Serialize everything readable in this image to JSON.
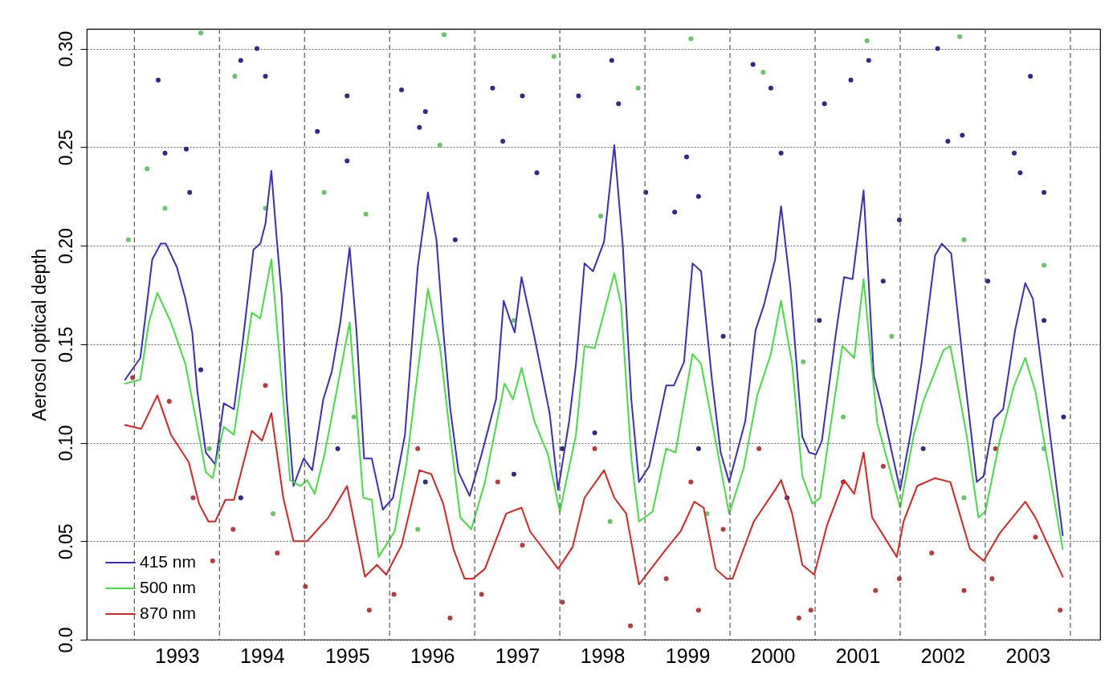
{
  "chart_data": {
    "type": "line",
    "ylabel": "Aerosol optical depth",
    "xlim": [
      1992.44,
      2004.35
    ],
    "ylim": [
      0,
      0.31
    ],
    "xticks": [
      {
        "value": 1993.5,
        "label": "1993"
      },
      {
        "value": 1994.5,
        "label": "1994"
      },
      {
        "value": 1995.5,
        "label": "1995"
      },
      {
        "value": 1996.5,
        "label": "1996"
      },
      {
        "value": 1997.5,
        "label": "1997"
      },
      {
        "value": 1998.5,
        "label": "1998"
      },
      {
        "value": 1999.5,
        "label": "1999"
      },
      {
        "value": 2000.5,
        "label": "2000"
      },
      {
        "value": 2001.5,
        "label": "2001"
      },
      {
        "value": 2002.5,
        "label": "2002"
      },
      {
        "value": 2003.5,
        "label": "2003"
      }
    ],
    "yticks": [
      {
        "value": 0,
        "label": "0.0"
      },
      0.05,
      {
        "value": 0.1,
        "label": "0.10"
      },
      0.15,
      {
        "value": 0.2,
        "label": "0.20"
      },
      0.25,
      {
        "value": 0.3,
        "label": "0.30"
      }
    ],
    "grid": "y",
    "legend": "bottom left",
    "line_style": "solid",
    "ref_lines": [
      {
        "axis": "x",
        "value": 1993,
        "line_style": "dashed",
        "color": "#555555"
      },
      {
        "axis": "x",
        "value": 1994,
        "line_style": "dashed",
        "color": "#555555"
      },
      {
        "axis": "x",
        "value": 1995,
        "line_style": "dashed",
        "color": "#555555"
      },
      {
        "axis": "x",
        "value": 1996,
        "line_style": "dashed",
        "color": "#555555"
      },
      {
        "axis": "x",
        "value": 1997,
        "line_style": "dashed",
        "color": "#555555"
      },
      {
        "axis": "x",
        "value": 1998,
        "line_style": "dashed",
        "color": "#555555"
      },
      {
        "axis": "x",
        "value": 1999,
        "line_style": "dashed",
        "color": "#555555"
      },
      {
        "axis": "x",
        "value": 2000,
        "line_style": "dashed",
        "color": "#555555"
      },
      {
        "axis": "x",
        "value": 2001,
        "line_style": "dashed",
        "color": "#555555"
      },
      {
        "axis": "x",
        "value": 2002,
        "line_style": "dashed",
        "color": "#555555"
      },
      {
        "axis": "x",
        "value": 2003,
        "line_style": "dashed",
        "color": "#555555"
      },
      {
        "axis": "x",
        "value": 2004,
        "line_style": "dashed",
        "color": "#555555"
      }
    ],
    "series": [
      {
        "type": "scatter",
        "marker": "circle",
        "color": "#2c2a8c",
        "x": [
          1993.28,
          1993.36,
          1993.61,
          1993.65,
          1994.25,
          1994.44,
          1994.54,
          1995.15,
          1995.5,
          1995.5,
          1996.14,
          1996.42,
          1996.35,
          1996.77,
          1997.21,
          1997.33,
          1997.73,
          1997.56,
          1998.22,
          1998.61,
          1998.69,
          1999.01,
          1999.35,
          1999.49,
          1999.63,
          2000.27,
          2000.48,
          2000.6,
          2001.11,
          2001.42,
          2001.63,
          2001.99,
          2002.44,
          2002.56,
          2002.73,
          2003.34,
          2003.41,
          2003.53,
          2003.69,
          2003.92,
          2003.69,
          2003.03,
          2001.8,
          2000.67,
          1998.41,
          1996.42,
          1995.39,
          1993.78,
          2001.05,
          1999.63,
          1997.46,
          1999.92,
          2002.27,
          1994.25,
          1998.03
        ],
        "values": [
          0.284,
          0.247,
          0.249,
          0.227,
          0.294,
          0.3,
          0.286,
          0.258,
          0.276,
          0.243,
          0.279,
          0.268,
          0.26,
          0.203,
          0.28,
          0.253,
          0.237,
          0.276,
          0.276,
          0.294,
          0.272,
          0.227,
          0.217,
          0.245,
          0.225,
          0.292,
          0.28,
          0.247,
          0.272,
          0.284,
          0.294,
          0.213,
          0.3,
          0.253,
          0.256,
          0.247,
          0.237,
          0.286,
          0.227,
          0.113,
          0.162,
          0.182,
          0.182,
          0.072,
          0.105,
          0.08,
          0.097,
          0.137,
          0.162,
          0.097,
          0.084,
          0.154,
          0.097,
          0.072,
          0.097
        ]
      },
      {
        "type": "scatter",
        "marker": "circle",
        "color": "#66c666",
        "x": [
          1993.15,
          1993.36,
          1993.78,
          1994.18,
          1994.54,
          1995.23,
          1995.72,
          1996.59,
          1996.64,
          1997.93,
          1998.48,
          1998.92,
          1999.54,
          2000.39,
          2001.61,
          2002.7,
          2002.75,
          2003.69,
          2000.86,
          2001.9,
          1997.46,
          1995.58,
          1993.88,
          1996.33,
          1998.59,
          1999.73,
          2001.33,
          2002.75,
          2003.69,
          1994.63,
          1992.93
        ],
        "values": [
          0.239,
          0.219,
          0.308,
          0.286,
          0.219,
          0.227,
          0.216,
          0.251,
          0.307,
          0.296,
          0.215,
          0.28,
          0.305,
          0.288,
          0.304,
          0.306,
          0.203,
          0.19,
          0.141,
          0.154,
          0.162,
          0.113,
          0.097,
          0.056,
          0.06,
          0.064,
          0.113,
          0.072,
          0.097,
          0.064,
          0.203
        ]
      },
      {
        "type": "scatter",
        "marker": "circle",
        "color": "#b83a3a",
        "x": [
          1992.98,
          1993.41,
          1993.69,
          1993.92,
          1994.16,
          1994.54,
          1994.68,
          1995.01,
          1995.76,
          1996.05,
          1996.33,
          1996.71,
          1997.08,
          1997.56,
          1998.03,
          1998.41,
          1998.83,
          1999.25,
          1999.63,
          1999.92,
          2000.34,
          2000.81,
          2000.95,
          2001.33,
          2001.71,
          2001.99,
          2002.37,
          2002.75,
          2003.08,
          2003.59,
          2003.88,
          2003.12,
          2001.8,
          1999.54,
          1997.27
        ],
        "values": [
          0.133,
          0.121,
          0.072,
          0.04,
          0.056,
          0.129,
          0.044,
          0.027,
          0.015,
          0.023,
          0.097,
          0.011,
          0.023,
          0.048,
          0.019,
          0.097,
          0.007,
          0.031,
          0.015,
          0.056,
          0.097,
          0.011,
          0.015,
          0.08,
          0.025,
          0.031,
          0.044,
          0.025,
          0.031,
          0.052,
          0.015,
          0.097,
          0.088,
          0.08,
          0.08
        ]
      },
      {
        "name": "415 nm",
        "color": "#3b2cc4",
        "x": [
          1992.89,
          1993.07,
          1993.13,
          1993.21,
          1993.31,
          1993.37,
          1993.5,
          1993.6,
          1993.68,
          1993.74,
          1993.84,
          1993.95,
          1993.99,
          1994.05,
          1994.17,
          1994.27,
          1994.4,
          1994.48,
          1994.54,
          1994.61,
          1994.67,
          1994.73,
          1994.79,
          1994.87,
          1994.99,
          1995.09,
          1995.22,
          1995.32,
          1995.42,
          1995.53,
          1995.61,
          1995.7,
          1995.79,
          1995.92,
          1996.04,
          1996.18,
          1996.33,
          1996.45,
          1996.55,
          1996.63,
          1996.71,
          1996.81,
          1996.94,
          1997.08,
          1997.25,
          1997.34,
          1997.41,
          1997.47,
          1997.55,
          1997.7,
          1997.88,
          1997.98,
          1998.11,
          1998.19,
          1998.29,
          1998.39,
          1998.52,
          1998.64,
          1998.74,
          1998.84,
          1998.93,
          1999.05,
          1999.25,
          1999.34,
          1999.46,
          1999.56,
          1999.66,
          1999.79,
          1999.89,
          1999.99,
          2000.18,
          2000.3,
          2000.4,
          2000.53,
          2000.6,
          2000.71,
          2000.85,
          2000.93,
          2001.01,
          2001.08,
          2001.24,
          2001.34,
          2001.44,
          2001.57,
          2001.69,
          2001.79,
          2002.0,
          2002.12,
          2002.25,
          2002.41,
          2002.49,
          2002.6,
          2002.74,
          2002.9,
          2002.98,
          2003.1,
          2003.21,
          2003.35,
          2003.47,
          2003.56,
          2003.91
        ],
        "values": [
          0.132,
          0.143,
          0.164,
          0.193,
          0.201,
          0.201,
          0.189,
          0.173,
          0.156,
          0.126,
          0.095,
          0.089,
          0.101,
          0.12,
          0.117,
          0.15,
          0.198,
          0.201,
          0.211,
          0.238,
          0.205,
          0.175,
          0.122,
          0.078,
          0.092,
          0.086,
          0.122,
          0.136,
          0.161,
          0.199,
          0.157,
          0.092,
          0.092,
          0.066,
          0.072,
          0.104,
          0.189,
          0.227,
          0.203,
          0.157,
          0.118,
          0.085,
          0.073,
          0.094,
          0.122,
          0.172,
          0.163,
          0.156,
          0.184,
          0.154,
          0.115,
          0.076,
          0.111,
          0.14,
          0.191,
          0.187,
          0.202,
          0.251,
          0.2,
          0.122,
          0.08,
          0.088,
          0.129,
          0.129,
          0.141,
          0.191,
          0.187,
          0.131,
          0.095,
          0.08,
          0.111,
          0.157,
          0.17,
          0.193,
          0.22,
          0.179,
          0.103,
          0.095,
          0.094,
          0.101,
          0.154,
          0.184,
          0.183,
          0.228,
          0.134,
          0.117,
          0.076,
          0.104,
          0.14,
          0.195,
          0.201,
          0.196,
          0.14,
          0.08,
          0.083,
          0.112,
          0.117,
          0.157,
          0.181,
          0.173,
          0.053
        ]
      },
      {
        "name": "500 nm",
        "color": "#44dd44",
        "x": [
          1992.89,
          1993.07,
          1993.17,
          1993.27,
          1993.43,
          1993.6,
          1993.74,
          1993.84,
          1993.92,
          1994.05,
          1994.17,
          1994.38,
          1994.48,
          1994.61,
          1994.68,
          1994.83,
          1994.95,
          1995.03,
          1995.12,
          1995.24,
          1995.53,
          1995.69,
          1995.79,
          1995.87,
          1996.06,
          1996.2,
          1996.45,
          1996.59,
          1996.71,
          1996.83,
          1996.96,
          1997.12,
          1997.35,
          1997.45,
          1997.55,
          1997.7,
          1997.86,
          1998.0,
          1998.19,
          1998.29,
          1998.41,
          1998.64,
          1998.72,
          1998.84,
          1998.93,
          1999.09,
          1999.25,
          1999.36,
          1999.56,
          1999.66,
          1999.83,
          1999.99,
          2000.16,
          2000.32,
          2000.48,
          2000.6,
          2000.73,
          2000.85,
          2000.97,
          2001.06,
          2001.18,
          2001.32,
          2001.46,
          2001.57,
          2001.73,
          2002.0,
          2002.16,
          2002.28,
          2002.51,
          2002.59,
          2002.78,
          2002.92,
          2003.0,
          2003.17,
          2003.34,
          2003.47,
          2003.59,
          2003.91
        ],
        "values": [
          0.13,
          0.132,
          0.161,
          0.176,
          0.161,
          0.14,
          0.108,
          0.085,
          0.082,
          0.108,
          0.104,
          0.166,
          0.163,
          0.193,
          0.157,
          0.081,
          0.078,
          0.081,
          0.074,
          0.095,
          0.161,
          0.072,
          0.071,
          0.042,
          0.055,
          0.09,
          0.178,
          0.149,
          0.104,
          0.062,
          0.056,
          0.08,
          0.13,
          0.122,
          0.138,
          0.111,
          0.094,
          0.065,
          0.104,
          0.149,
          0.148,
          0.186,
          0.17,
          0.092,
          0.06,
          0.065,
          0.097,
          0.095,
          0.145,
          0.14,
          0.101,
          0.064,
          0.087,
          0.124,
          0.145,
          0.172,
          0.14,
          0.083,
          0.069,
          0.072,
          0.108,
          0.149,
          0.143,
          0.183,
          0.11,
          0.067,
          0.104,
          0.122,
          0.147,
          0.149,
          0.104,
          0.062,
          0.065,
          0.101,
          0.129,
          0.143,
          0.126,
          0.046
        ]
      },
      {
        "name": "870 nm",
        "color": "#dd2222",
        "x": [
          1992.89,
          1993.08,
          1993.27,
          1993.43,
          1993.64,
          1993.76,
          1993.87,
          1993.95,
          1994.07,
          1994.17,
          1994.38,
          1994.5,
          1994.61,
          1994.75,
          1994.87,
          1995.03,
          1995.28,
          1995.5,
          1995.71,
          1995.85,
          1995.96,
          1996.14,
          1996.35,
          1996.49,
          1996.63,
          1996.75,
          1996.88,
          1996.98,
          1997.12,
          1997.37,
          1997.55,
          1997.65,
          1997.98,
          1998.15,
          1998.29,
          1998.52,
          1998.64,
          1998.78,
          1998.93,
          1999.09,
          1999.25,
          1999.42,
          1999.58,
          1999.69,
          1999.83,
          1999.96,
          2000.03,
          2000.28,
          2000.53,
          2000.6,
          2000.73,
          2000.85,
          2000.99,
          2001.14,
          2001.34,
          2001.46,
          2001.57,
          2001.67,
          2001.96,
          2002.04,
          2002.2,
          2002.41,
          2002.59,
          2002.82,
          2002.98,
          2003.17,
          2003.47,
          2003.59,
          2003.91
        ],
        "values": [
          0.109,
          0.107,
          0.124,
          0.104,
          0.09,
          0.069,
          0.06,
          0.06,
          0.071,
          0.071,
          0.106,
          0.101,
          0.115,
          0.072,
          0.05,
          0.05,
          0.062,
          0.078,
          0.032,
          0.038,
          0.033,
          0.048,
          0.086,
          0.084,
          0.069,
          0.046,
          0.031,
          0.031,
          0.036,
          0.064,
          0.067,
          0.055,
          0.036,
          0.047,
          0.072,
          0.086,
          0.072,
          0.064,
          0.028,
          0.037,
          0.046,
          0.055,
          0.07,
          0.067,
          0.036,
          0.031,
          0.031,
          0.06,
          0.076,
          0.081,
          0.064,
          0.038,
          0.033,
          0.058,
          0.081,
          0.074,
          0.095,
          0.062,
          0.042,
          0.06,
          0.078,
          0.082,
          0.08,
          0.046,
          0.04,
          0.054,
          0.07,
          0.062,
          0.032
        ]
      }
    ]
  }
}
